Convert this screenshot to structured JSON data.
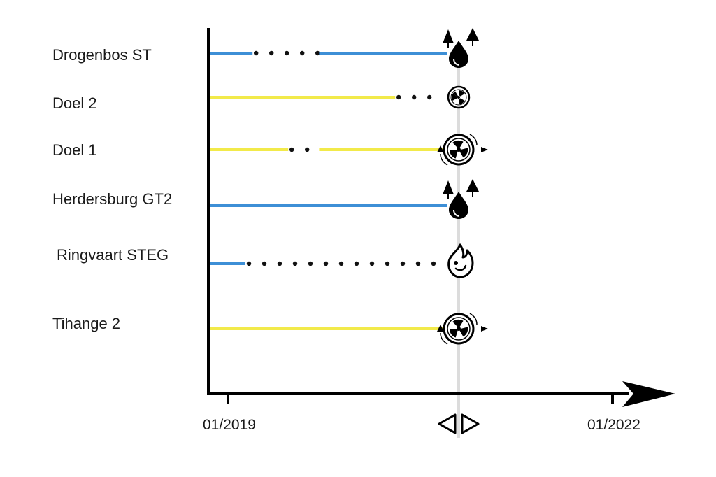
{
  "chart_data": {
    "type": "timeline",
    "x_axis": {
      "tick_labels": [
        "01/2019",
        "01/2022"
      ],
      "marker": "slider-handle"
    },
    "rows": [
      {
        "label": "Drogenbos ST",
        "line_color": "#3d8fd6",
        "segments": [
          {
            "style": "solid",
            "from": 0.0,
            "to": 0.18
          },
          {
            "style": "dotted",
            "from": 0.18,
            "to": 0.46
          },
          {
            "style": "solid",
            "from": 0.46,
            "to": 1.0
          }
        ],
        "end_icon": "gas-drop-with-trees-icon"
      },
      {
        "label": "Doel 2",
        "line_color": "#f2ea4a",
        "segments": [
          {
            "style": "solid",
            "from": 0.0,
            "to": 0.78
          },
          {
            "style": "dotted",
            "from": 0.78,
            "to": 0.96
          }
        ],
        "end_icon": "nuclear-icon"
      },
      {
        "label": "Doel 1",
        "line_color": "#f2ea4a",
        "segments": [
          {
            "style": "solid",
            "from": 0.0,
            "to": 0.33
          },
          {
            "style": "dotted",
            "from": 0.33,
            "to": 0.46
          },
          {
            "style": "solid",
            "from": 0.46,
            "to": 1.0
          }
        ],
        "end_icon": "nuclear-cycle-icon"
      },
      {
        "label": "Herdersburg GT2",
        "line_color": "#3d8fd6",
        "segments": [
          {
            "style": "solid",
            "from": 0.0,
            "to": 1.0
          }
        ],
        "end_icon": "gas-drop-with-trees-icon"
      },
      {
        "label": "Ringvaart STEG",
        "line_color": "#3d8fd6",
        "segments": [
          {
            "style": "solid",
            "from": 0.0,
            "to": 0.15
          },
          {
            "style": "dotted",
            "from": 0.15,
            "to": 0.96
          }
        ],
        "end_icon": "flame-icon"
      },
      {
        "label": "Tihange 2",
        "line_color": "#f2ea4a",
        "segments": [
          {
            "style": "solid",
            "from": 0.0,
            "to": 1.0
          }
        ],
        "end_icon": "nuclear-cycle-icon"
      }
    ]
  }
}
